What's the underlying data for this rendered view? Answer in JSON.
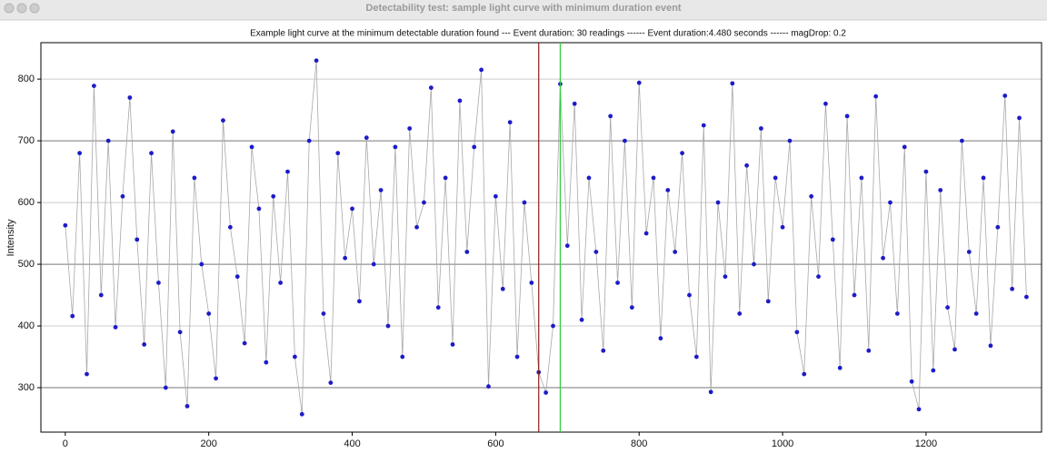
{
  "window": {
    "title": "Detectability test: sample light curve with minimum duration event"
  },
  "chart_data": {
    "type": "line",
    "title": "Example light curve at the minimum detectable duration found --- Event duration: 30 readings ------ Event duration:4.480 seconds ------ magDrop: 0.2",
    "y_label": "Intensity",
    "x": [
      0,
      10,
      20,
      30,
      40,
      50,
      60,
      70,
      80,
      90,
      100,
      110,
      120,
      130,
      140,
      150,
      160,
      170,
      180,
      190,
      200,
      210,
      220,
      230,
      240,
      250,
      260,
      270,
      280,
      290,
      300,
      310,
      320,
      330,
      340,
      350,
      360,
      370,
      380,
      390,
      400,
      410,
      420,
      430,
      440,
      450,
      460,
      470,
      480,
      490,
      500,
      510,
      520,
      530,
      540,
      550,
      560,
      570,
      580,
      590,
      600,
      610,
      620,
      630,
      640,
      650,
      660,
      670,
      680,
      690,
      700,
      710,
      720,
      730,
      740,
      750,
      760,
      770,
      780,
      790,
      800,
      810,
      820,
      830,
      840,
      850,
      860,
      870,
      880,
      890,
      900,
      910,
      920,
      930,
      940,
      950,
      960,
      970,
      980,
      990,
      1000,
      1010,
      1020,
      1030,
      1040,
      1050,
      1060,
      1070,
      1080,
      1090,
      1100,
      1110,
      1120,
      1130,
      1140,
      1150,
      1160,
      1170,
      1180,
      1190,
      1200,
      1210,
      1220,
      1230,
      1240,
      1250,
      1260,
      1270,
      1280,
      1290,
      1300,
      1310,
      1320,
      1330,
      1340
    ],
    "values": [
      563,
      416,
      680,
      322,
      789,
      450,
      700,
      398,
      610,
      770,
      540,
      370,
      680,
      470,
      300,
      715,
      390,
      270,
      640,
      500,
      420,
      315,
      733,
      560,
      480,
      372,
      690,
      590,
      341,
      610,
      470,
      650,
      350,
      257,
      700,
      830,
      420,
      308,
      680,
      510,
      590,
      440,
      705,
      500,
      620,
      400,
      690,
      350,
      720,
      560,
      600,
      786,
      430,
      640,
      370,
      765,
      520,
      690,
      815,
      302,
      610,
      460,
      730,
      350,
      600,
      470,
      325,
      292,
      400,
      792,
      530,
      760,
      410,
      640,
      520,
      360,
      740,
      470,
      700,
      430,
      794,
      550,
      640,
      380,
      620,
      520,
      680,
      450,
      350,
      725,
      293,
      600,
      480,
      793,
      420,
      660,
      500,
      720,
      440,
      640,
      560,
      700,
      390,
      322,
      610,
      480,
      760,
      540,
      332,
      740,
      450,
      640,
      360,
      772,
      510,
      600,
      420,
      690,
      310,
      265,
      650,
      328,
      620,
      430,
      362,
      700,
      520,
      420,
      640,
      368,
      560,
      773,
      460,
      737,
      447
    ],
    "color": "#1c1cc8",
    "line_color": "#a8a8a8",
    "markers": [
      {
        "x": 660,
        "color": "#8b1c1c"
      },
      {
        "x": 690,
        "color": "#2ecc40"
      }
    ],
    "xlim": [
      -34,
      1361
    ],
    "xticks": [
      0,
      200,
      400,
      600,
      800,
      1000,
      1200
    ],
    "ylim": [
      228,
      859
    ],
    "yticks": [
      300,
      400,
      500,
      600,
      700,
      800
    ],
    "grid": true
  }
}
